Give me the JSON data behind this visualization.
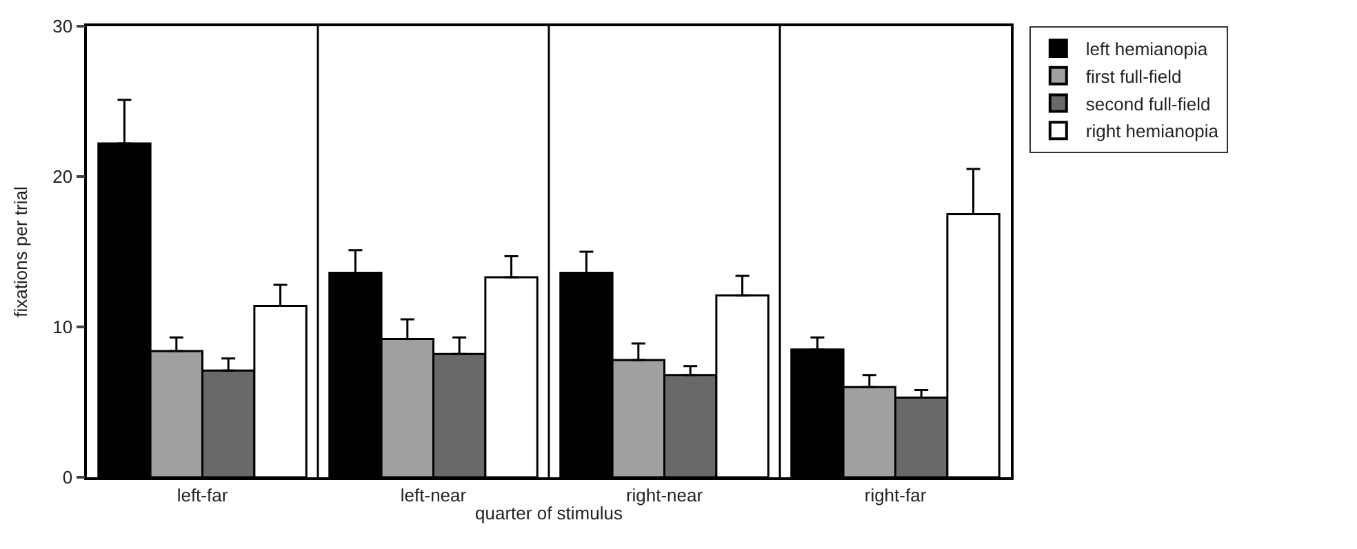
{
  "chart_data": {
    "type": "bar",
    "xlabel": "quarter of stimulus",
    "ylabel": "fixations per trial",
    "categories": [
      "left-far",
      "left-near",
      "right-near",
      "right-far"
    ],
    "series": [
      {
        "name": "left hemianopia",
        "color": "#000000",
        "values": [
          22.2,
          13.6,
          13.6,
          8.5
        ],
        "errors": [
          [
            22.2,
            25.1
          ],
          [
            13.6,
            15.1
          ],
          [
            13.6,
            15.0
          ],
          [
            8.5,
            9.3
          ]
        ]
      },
      {
        "name": "first full-field",
        "color": "#a0a0a0",
        "values": [
          8.4,
          9.2,
          7.8,
          6.0
        ],
        "errors": [
          [
            8.4,
            9.3
          ],
          [
            9.2,
            10.5
          ],
          [
            7.8,
            8.9
          ],
          [
            6.0,
            6.8
          ]
        ]
      },
      {
        "name": "second full-field",
        "color": "#696969",
        "values": [
          7.1,
          8.2,
          6.8,
          5.3
        ],
        "errors": [
          [
            7.1,
            7.9
          ],
          [
            8.2,
            9.3
          ],
          [
            6.8,
            7.4
          ],
          [
            5.3,
            5.8
          ]
        ]
      },
      {
        "name": "right hemianopia",
        "color": "#ffffff",
        "values": [
          11.4,
          13.3,
          12.1,
          17.5
        ],
        "errors": [
          [
            11.4,
            12.8
          ],
          [
            13.3,
            14.7
          ],
          [
            12.1,
            13.4
          ],
          [
            17.5,
            20.5
          ]
        ]
      }
    ],
    "ylim": [
      0,
      30
    ],
    "yticks": [
      0,
      10,
      20,
      30
    ],
    "grid": "x",
    "legend": "top right"
  }
}
